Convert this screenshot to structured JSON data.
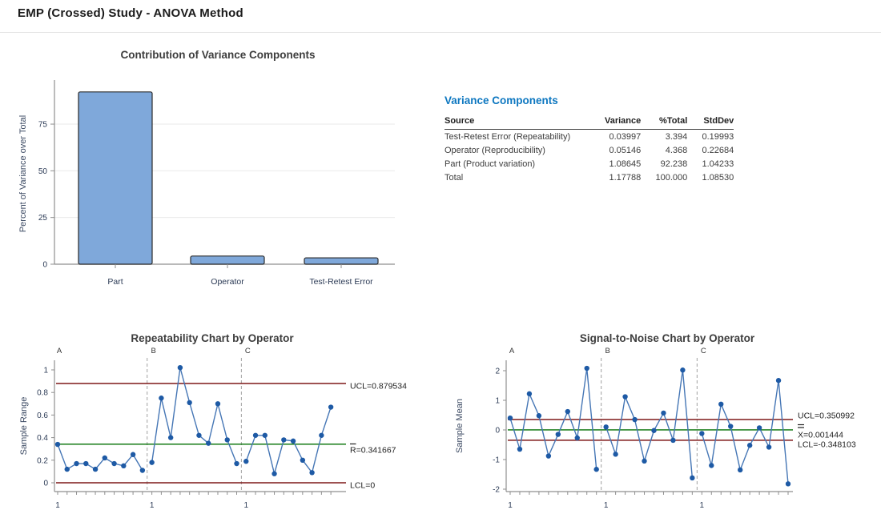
{
  "page": {
    "title": "EMP (Crossed) Study - ANOVA Method"
  },
  "variance_table": {
    "heading": "Variance Components",
    "columns": [
      "Source",
      "Variance",
      "%Total",
      "StdDev"
    ],
    "rows": [
      [
        "Test-Retest Error (Repeatability)",
        "0.03997",
        "3.394",
        "0.19993"
      ],
      [
        "Operator (Reproducibility)",
        "0.05146",
        "4.368",
        "0.22684"
      ],
      [
        "Part (Product variation)",
        "1.08645",
        "92.238",
        "1.04233"
      ],
      [
        "Total",
        "1.17788",
        "100.000",
        "1.08530"
      ]
    ]
  },
  "chart_data": [
    {
      "id": "contribution",
      "type": "bar",
      "title": "Contribution of Variance Components",
      "xlabel": "",
      "ylabel": "Percent of Variance over Total",
      "categories": [
        "Part",
        "Operator",
        "Test-Retest Error"
      ],
      "values": [
        92.238,
        4.368,
        3.394
      ],
      "yticks": [
        0,
        25,
        50,
        75
      ],
      "ylim": [
        0,
        98
      ],
      "grid": "horizontal"
    },
    {
      "id": "repeatability",
      "type": "line",
      "title": "Repeatability Chart by Operator",
      "ylabel": "Sample Range",
      "yticks": [
        0,
        0.2,
        0.4,
        0.6,
        0.8,
        1
      ],
      "ylim": [
        -0.08,
        1.08
      ],
      "group_labels": [
        "A",
        "B",
        "C"
      ],
      "group_start_tick_label": "1",
      "limits": {
        "ucl": 0.879534,
        "center": 0.341667,
        "lcl": 0
      },
      "limit_labels": {
        "ucl": "UCL=0.879534",
        "center": "R=0.341667",
        "lcl": "LCL=0"
      },
      "center_accent": "overline",
      "series": [
        {
          "name": "A",
          "values": [
            0.34,
            0.12,
            0.17,
            0.17,
            0.12,
            0.22,
            0.17,
            0.15,
            0.25,
            0.11
          ]
        },
        {
          "name": "B",
          "values": [
            0.18,
            0.75,
            0.4,
            1.02,
            0.71,
            0.42,
            0.35,
            0.7,
            0.38,
            0.17
          ]
        },
        {
          "name": "C",
          "values": [
            0.19,
            0.42,
            0.42,
            0.08,
            0.38,
            0.37,
            0.2,
            0.09,
            0.42,
            0.67
          ]
        }
      ]
    },
    {
      "id": "signal-to-noise",
      "type": "line",
      "title": "Signal-to-Noise Chart by Operator",
      "ylabel": "Sample Mean",
      "yticks": [
        -2,
        -1,
        0,
        1,
        2
      ],
      "ylim": [
        -2.3,
        2.3
      ],
      "group_labels": [
        "A",
        "B",
        "C"
      ],
      "group_start_tick_label": "1",
      "limits": {
        "ucl": 0.350992,
        "center": 0.001444,
        "lcl": -0.348103
      },
      "limit_labels": {
        "ucl": "UCL=0.350992",
        "center": "X=0.001444",
        "lcl": "LCL=-0.348103"
      },
      "center_accent": "double-overline",
      "series": [
        {
          "name": "A",
          "values": [
            0.4,
            -0.65,
            1.22,
            0.48,
            -0.88,
            -0.15,
            0.62,
            -0.27,
            2.08,
            -1.33
          ]
        },
        {
          "name": "B",
          "values": [
            0.1,
            -0.82,
            1.12,
            0.35,
            -1.05,
            -0.02,
            0.57,
            -0.35,
            2.02,
            -1.62
          ]
        },
        {
          "name": "C",
          "values": [
            -0.12,
            -1.2,
            0.87,
            0.12,
            -1.35,
            -0.52,
            0.07,
            -0.58,
            1.67,
            -1.82
          ]
        }
      ]
    }
  ],
  "colors": {
    "heading_accent": "#0d77c0",
    "bar_fill": "#7fa8da",
    "bar_stroke": "#2b2b2b",
    "series_line": "#4576b5",
    "series_point": "#1e5aa5",
    "control_limit_line": "#7f1818",
    "center_line": "#006f00",
    "axis": "#8f8f8f",
    "grid": "#e9e9e9",
    "tick_text": "#2b3a55",
    "axis_label_text": "#3c4a63",
    "chart_title_text": "#3d3d3d",
    "limit_label_text": "#1f1f1f",
    "group_separator": "#a0a0a0"
  }
}
